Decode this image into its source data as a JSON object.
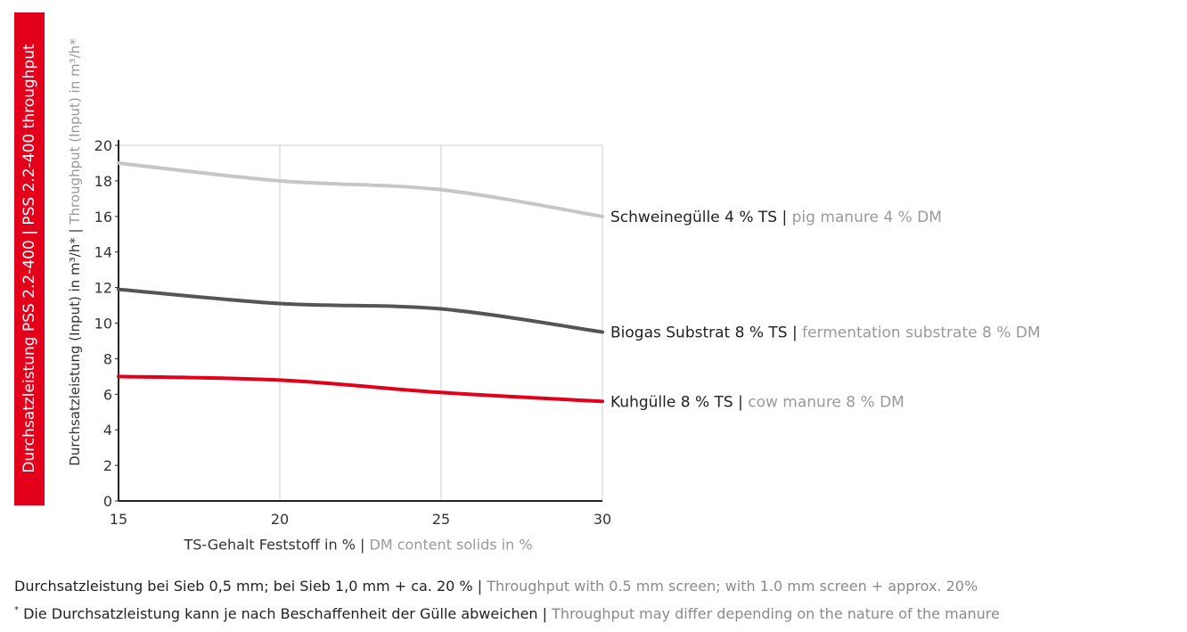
{
  "banner": {
    "de": "Durchsatzleistung PSS 2.2-400",
    "sep": "|",
    "en": "PSS 2.2-400 throughput"
  },
  "chart_data": {
    "type": "line",
    "x": [
      15,
      20,
      25,
      30
    ],
    "xticks": [
      "15",
      "20",
      "25",
      "30"
    ],
    "yticks": [
      "0",
      "2",
      "4",
      "6",
      "8",
      "10",
      "12",
      "14",
      "16",
      "18",
      "20"
    ],
    "xlim": [
      15,
      30
    ],
    "ylim": [
      0,
      20
    ],
    "grid": "vertical and top",
    "ylabel_de": "Durchsatzleistung (Input) in m³/h*",
    "ylabel_sep": "|",
    "ylabel_en": "Throughput (Input) in m³/h*",
    "xlabel_de": "TS-Gehalt Feststoff in %",
    "xlabel_sep": "|",
    "xlabel_en": "DM content solids in %",
    "series": [
      {
        "name_de": "Schweinegülle 4 % TS",
        "name_en": "pig manure 4 % DM",
        "values": [
          19.0,
          18.0,
          17.5,
          16.0
        ],
        "color": "#c6c6c6"
      },
      {
        "name_de": "Biogas Substrat 8 % TS",
        "name_en": "fermentation substrate 8 % DM",
        "values": [
          11.9,
          11.1,
          10.8,
          9.5
        ],
        "color": "#555555"
      },
      {
        "name_de": "Kuhgülle 8 % TS",
        "name_en": "cow manure 8 % DM",
        "values": [
          7.0,
          6.8,
          6.1,
          5.6
        ],
        "color": "#e2001a"
      }
    ]
  },
  "footnotes": {
    "line1_de": "Durchsatzleistung bei Sieb 0,5 mm; bei Sieb 1,0 mm + ca. 20 %",
    "line1_sep": "|",
    "line1_en": "Throughput with 0.5 mm screen; with 1.0 mm screen + approx. 20%",
    "line2_star": "*",
    "line2_de": "Die Durchsatzleistung kann je nach Beschaffenheit der Gülle abweichen",
    "line2_sep": "|",
    "line2_en": "Throughput may differ depending on the nature of the manure"
  }
}
